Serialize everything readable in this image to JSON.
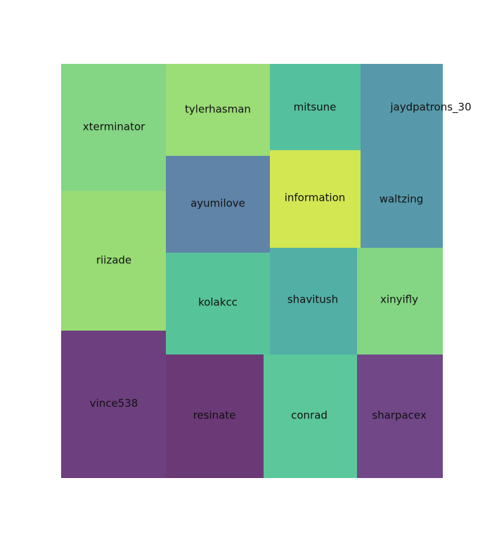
{
  "chart_data": {
    "type": "treemap",
    "title": "",
    "xlabel": "",
    "ylabel": "",
    "grid": false,
    "tiles": [
      {
        "label": "xterminator",
        "color": "#84d584"
      },
      {
        "label": "riizade",
        "color": "#99db74"
      },
      {
        "label": "vince538",
        "color": "#6e3f7e"
      },
      {
        "label": "tylerhasman",
        "color": "#9bdd76"
      },
      {
        "label": "ayumilove",
        "color": "#6084a8"
      },
      {
        "label": "kolakcc",
        "color": "#57c399"
      },
      {
        "label": "resinate",
        "color": "#6b3976"
      },
      {
        "label": "mitsune",
        "color": "#55c09e"
      },
      {
        "label": "information",
        "color": "#d2e752"
      },
      {
        "label": "shavitush",
        "color": "#51afa5"
      },
      {
        "label": "conrad",
        "color": "#5bc79b"
      },
      {
        "label": "jaydpatrons_30",
        "color": "#5799aa"
      },
      {
        "label": "waltzing",
        "color": "#5799aa"
      },
      {
        "label": "xinyifly",
        "color": "#84d584"
      },
      {
        "label": "sharpacex",
        "color": "#714788"
      }
    ]
  }
}
